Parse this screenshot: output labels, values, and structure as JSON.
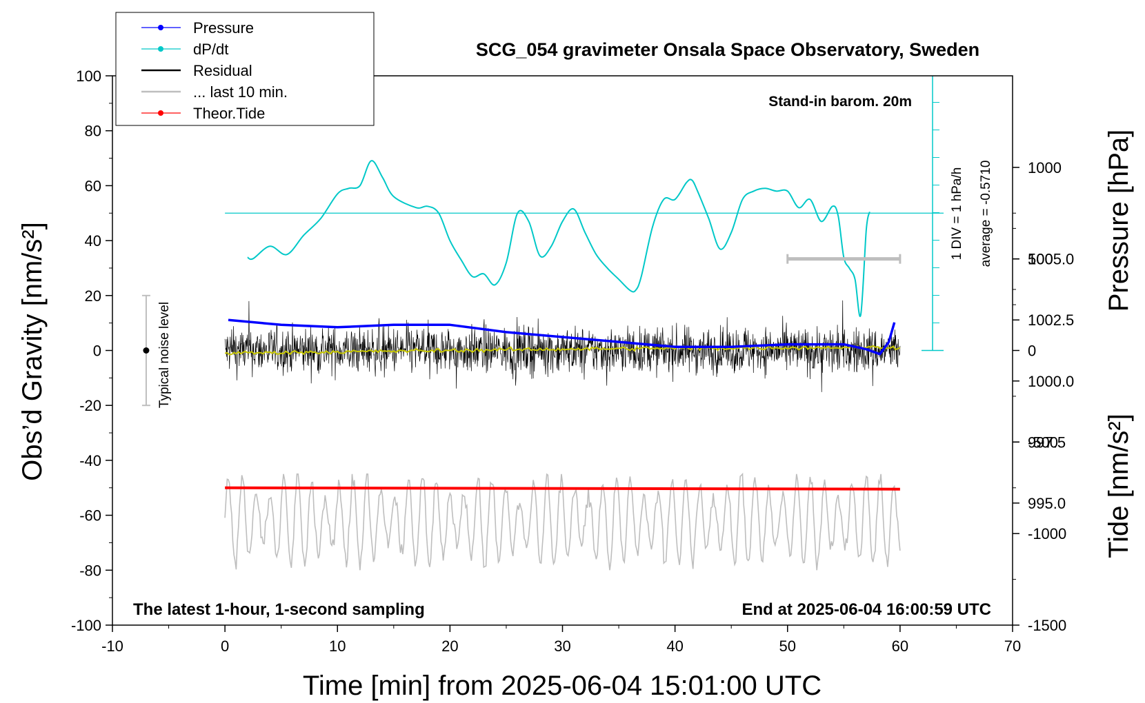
{
  "chart_data": {
    "type": "line",
    "title": "SCG_054 gravimeter Onsala Space Observatory, Sweden",
    "xlabel": "Time [min] from 2025-06-04 15:01:00 UTC",
    "ylabel_left": "Obs’d Gravity [nm/s²]",
    "ylabel_right_top": "Pressure [hPa]",
    "ylabel_right_bottom": "Tide [nm/s²]",
    "xlim": [
      -10,
      70
    ],
    "ylim": [
      -100,
      100
    ],
    "x_ticks": [
      "-10",
      "0",
      "10",
      "20",
      "30",
      "40",
      "50",
      "60",
      "70"
    ],
    "y_ticks": [
      "100",
      "80",
      "60",
      "40",
      "20",
      "0",
      "-20",
      "-40",
      "-60",
      "-80",
      "-100"
    ],
    "pressure_axis": {
      "ticks": [
        {
          "label": "1005.0",
          "value": 1005.0
        },
        {
          "label": "1002.5",
          "value": 1002.5
        },
        {
          "label": "1000.0",
          "value": 1000.0
        },
        {
          "label": "997.5",
          "value": 997.5
        },
        {
          "label": "995.0",
          "value": 995.0
        }
      ],
      "range": [
        990,
        1012.5
      ]
    },
    "tide_axis": {
      "ticks": [
        {
          "label": "1000",
          "value": 1000
        },
        {
          "label": "500",
          "value": 500
        },
        {
          "label": "0",
          "value": 0
        },
        {
          "label": "-500",
          "value": -500
        },
        {
          "label": "-1000",
          "value": -1000
        },
        {
          "label": "-1500",
          "value": -1500
        }
      ],
      "range": [
        -1500,
        1500
      ]
    },
    "legend": {
      "placement": "top-left",
      "entries": [
        {
          "label": "Pressure",
          "color": "#0000ff",
          "marker": true
        },
        {
          "label": "dP/dt",
          "color": "#00c8c8",
          "marker": true
        },
        {
          "label": "Residual",
          "color": "#000000",
          "marker": false
        },
        {
          "label": "... last 10 min.",
          "color": "#bebebe",
          "marker": false
        },
        {
          "label": "Theor.Tide",
          "color": "#ff0000",
          "marker": true
        }
      ]
    },
    "annotations": {
      "barometer": "Stand-in barom. 20m",
      "div_label": "1 DIV = 1 hPa/h",
      "average_label": "average = -0.5710",
      "noise_label": "Typical noise level",
      "bottom_left": "The latest 1-hour, 1-second sampling",
      "bottom_right": "End at 2025-06-04 16:00:59 UTC"
    },
    "noise_bar": {
      "x": -7,
      "y_low": -20,
      "y_high": 20
    },
    "last10_bar": {
      "x_start": 50,
      "x_end": 60,
      "tide_value": 500
    },
    "series": [
      {
        "name": "Pressure",
        "color": "#0000ff",
        "x": [
          0.3,
          5,
          10,
          15,
          20,
          25,
          30,
          35,
          40,
          45,
          50,
          55,
          57,
          58.2,
          59,
          59.5
        ],
        "y": [
          1002.5,
          1002.3,
          1002.2,
          1002.3,
          1002.3,
          1002.0,
          1001.8,
          1001.6,
          1001.4,
          1001.4,
          1001.5,
          1001.5,
          1001.3,
          1001.1,
          1001.6,
          1002.4
        ]
      },
      {
        "name": "dP/dt",
        "color": "#00c8c8",
        "x": [
          2,
          2.5,
          4,
          5.5,
          7,
          8.5,
          10,
          11,
          12,
          13,
          14,
          15,
          17,
          18,
          19,
          20,
          21,
          22,
          23,
          24,
          25,
          26,
          27,
          28,
          29,
          30,
          31,
          32,
          33,
          34,
          35,
          36,
          36.5,
          37,
          38,
          39,
          40,
          41,
          41.5,
          42,
          43,
          44,
          45,
          46,
          47,
          48,
          49,
          50,
          51,
          52,
          53,
          54,
          54.5,
          55,
          55.5,
          56,
          56.5,
          57,
          57.3
        ],
        "y": [
          -1.6,
          -1.65,
          -1.2,
          -1.5,
          -0.8,
          -0.2,
          0.7,
          0.9,
          1.0,
          1.9,
          1.3,
          0.6,
          0.2,
          0.25,
          0.0,
          -1.0,
          -1.7,
          -2.3,
          -2.2,
          -2.6,
          -1.8,
          0.0,
          -0.3,
          -1.55,
          -1.2,
          -0.3,
          0.15,
          -0.7,
          -1.5,
          -2.0,
          -2.4,
          -2.8,
          -2.8,
          -2.3,
          -0.5,
          0.5,
          0.5,
          1.1,
          1.2,
          0.8,
          -0.2,
          -1.3,
          -0.7,
          0.5,
          0.8,
          0.9,
          0.8,
          0.8,
          0.2,
          0.5,
          -0.3,
          0.25,
          -0.1,
          -1.6,
          -2.0,
          -2.4,
          -3.7,
          -0.6,
          0.05
        ]
      },
      {
        "name": "Residual",
        "color": "#000000",
        "x": [
          0,
          60
        ],
        "y_range": [
          -30,
          26
        ]
      },
      {
        "name": "Residual smoothed",
        "color": "#c8c800",
        "x": [
          0,
          10,
          20,
          30,
          40,
          50,
          60
        ],
        "y": [
          -1,
          -0.5,
          0,
          0.5,
          0.8,
          1,
          1.2
        ]
      },
      {
        "name": "... last 10 min.",
        "color": "#bebebe",
        "x": [
          0,
          60
        ],
        "y_range": [
          -80,
          -45
        ]
      },
      {
        "name": "Theor.Tide",
        "color": "#ff0000",
        "x": [
          0,
          60
        ],
        "y": [
          -50,
          -50.5
        ]
      }
    ]
  }
}
